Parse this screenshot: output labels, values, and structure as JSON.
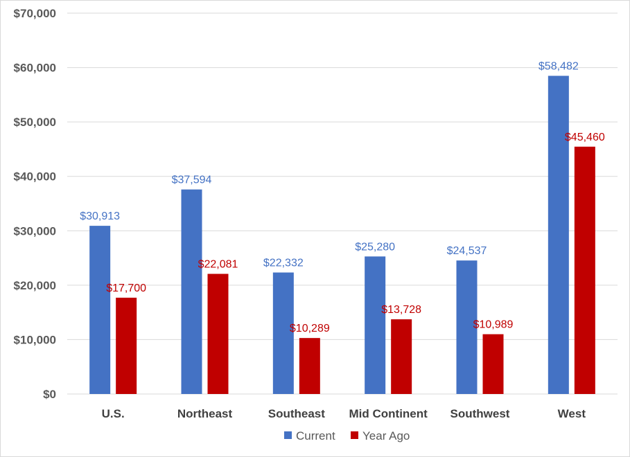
{
  "chart_data": {
    "type": "bar",
    "title": "",
    "xlabel": "",
    "ylabel": "",
    "ylim": [
      0,
      70000
    ],
    "yticks": [
      0,
      10000,
      20000,
      30000,
      40000,
      50000,
      60000,
      70000
    ],
    "ytick_labels": [
      "$0",
      "$10,000",
      "$20,000",
      "$30,000",
      "$40,000",
      "$50,000",
      "$60,000",
      "$70,000"
    ],
    "grid": true,
    "legend_position": "bottom",
    "categories": [
      "U.S.",
      "Northeast",
      "Southeast",
      "Mid Continent",
      "Southwest",
      "West"
    ],
    "series": [
      {
        "name": "Current",
        "color": "#4472C4",
        "values": [
          30913,
          37594,
          22332,
          25280,
          24537,
          58482
        ],
        "labels": [
          "$30,913",
          "$37,594",
          "$22,332",
          "$25,280",
          "$24,537",
          "$58,482"
        ]
      },
      {
        "name": "Year Ago",
        "color": "#C00000",
        "values": [
          17700,
          22081,
          10289,
          13728,
          10989,
          45460
        ],
        "labels": [
          "$17,700",
          "$22,081",
          "$10,289",
          "$13,728",
          "$10,989",
          "$45,460"
        ]
      }
    ]
  }
}
